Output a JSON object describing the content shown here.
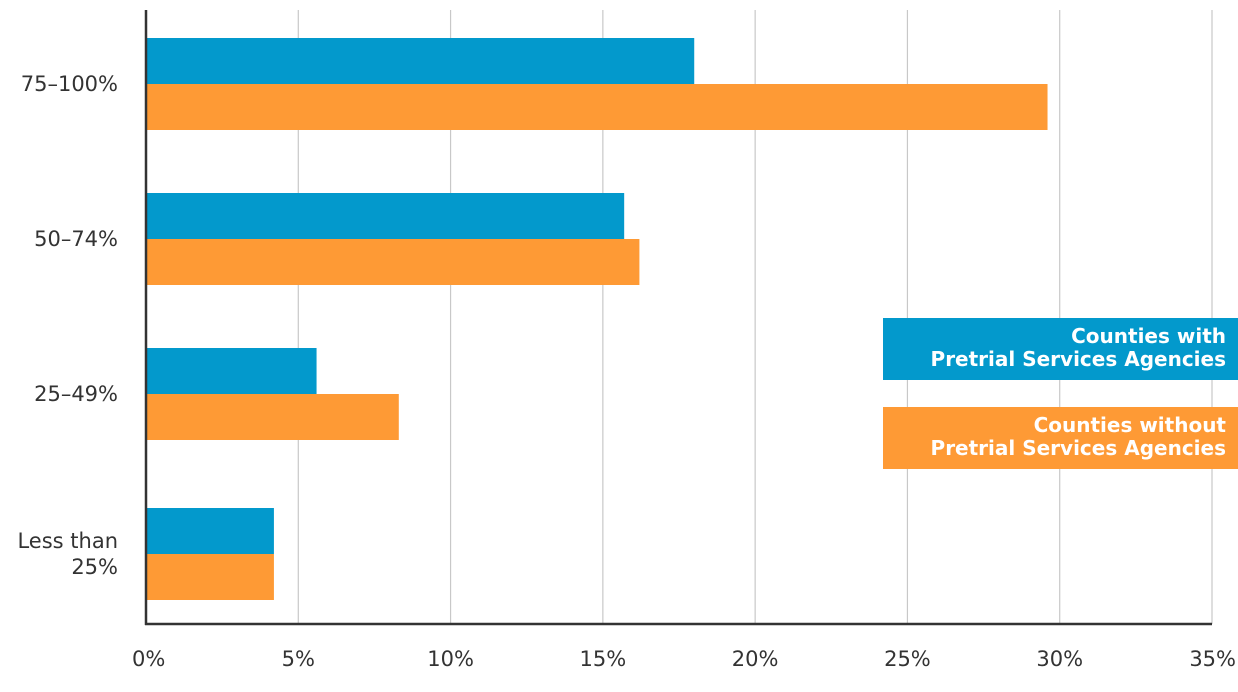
{
  "chart_data": {
    "type": "bar",
    "orientation": "horizontal",
    "categories": [
      "75–100%",
      "50–74%",
      "25–49%",
      "Less than 25%"
    ],
    "category_label_lines": [
      [
        "75–100%"
      ],
      [
        "50–74%"
      ],
      [
        "25–49%"
      ],
      [
        "Less than",
        "25%"
      ]
    ],
    "series": [
      {
        "name": "Counties with Pretrial Services Agencies",
        "name_lines": [
          "Counties with",
          "Pretrial Services Agencies"
        ],
        "color": "#0399CC",
        "values": [
          18.0,
          15.7,
          5.6,
          4.2
        ]
      },
      {
        "name": "Counties without Pretrial Services Agencies",
        "name_lines": [
          "Counties without",
          "Pretrial Services Agencies"
        ],
        "color": "#FE9A35",
        "values": [
          29.6,
          16.2,
          8.3,
          4.2
        ]
      }
    ],
    "x_ticks": [
      "0%",
      "5%",
      "10%",
      "15%",
      "20%",
      "25%",
      "30%",
      "35%"
    ],
    "xlim": [
      0,
      35
    ],
    "grid": "vertical",
    "legend_position": "right",
    "title": "",
    "xlabel": "",
    "ylabel": ""
  }
}
